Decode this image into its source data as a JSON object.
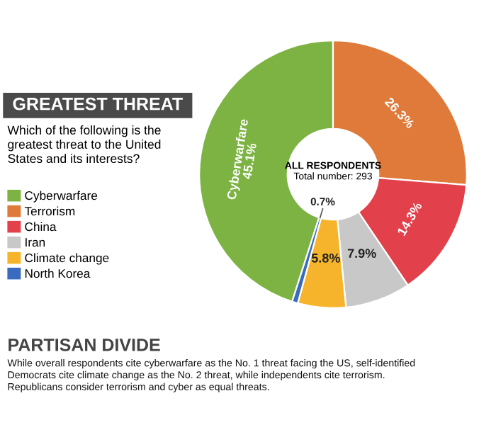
{
  "chart_data": {
    "type": "donut",
    "title": "GREATEST THREAT",
    "subtitle": "Which of the following is the\ngreatest threat to the United\nStates and its interests?",
    "categories": [
      "Cyberwarfare",
      "Terrorism",
      "China",
      "Iran",
      "Climate change",
      "North Korea"
    ],
    "values": [
      45.1,
      26.3,
      14.3,
      7.9,
      5.8,
      0.7
    ],
    "colors": [
      "#7cb342",
      "#e07a3a",
      "#e2404a",
      "#c8c8c8",
      "#f6b42c",
      "#3a6bbf"
    ],
    "value_labels": [
      "Cyberwarfare\n45.1%",
      "26.3%",
      "14.3%",
      "7.9%",
      "5.8%",
      "0.7%"
    ],
    "legend": "left",
    "annotations": [
      "ALL RESPONDENTS",
      "Total number: 293",
      "PARTISAN DIVIDE",
      "While overall respondents cite cyberwarfare as the No. 1 threat facing the US, self-identified\nDemocrats cite climate change as the No. 2 threat, while independents cite terrorism.\nRepublicans consider terrorism and cyber as equal threats."
    ]
  }
}
